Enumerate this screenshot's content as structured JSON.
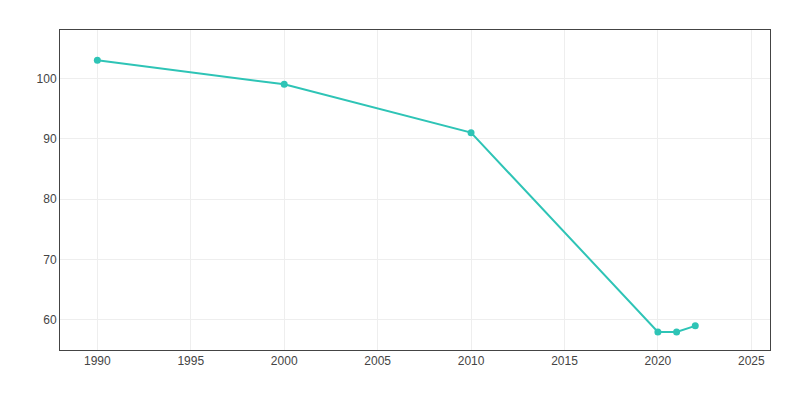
{
  "chart_data": {
    "type": "line",
    "x": [
      1990,
      2000,
      2010,
      2020,
      2021,
      2022
    ],
    "values": [
      103,
      99,
      91,
      58,
      58,
      59
    ],
    "color": "#2ec4b6",
    "marker": "circle",
    "xlim": [
      1988,
      2026
    ],
    "xticks": [
      1990,
      1995,
      2000,
      2005,
      2010,
      2015,
      2020,
      2025
    ],
    "ylim": [
      55,
      108
    ],
    "yticks": [
      60,
      70,
      80,
      90,
      100
    ],
    "grid": true
  }
}
